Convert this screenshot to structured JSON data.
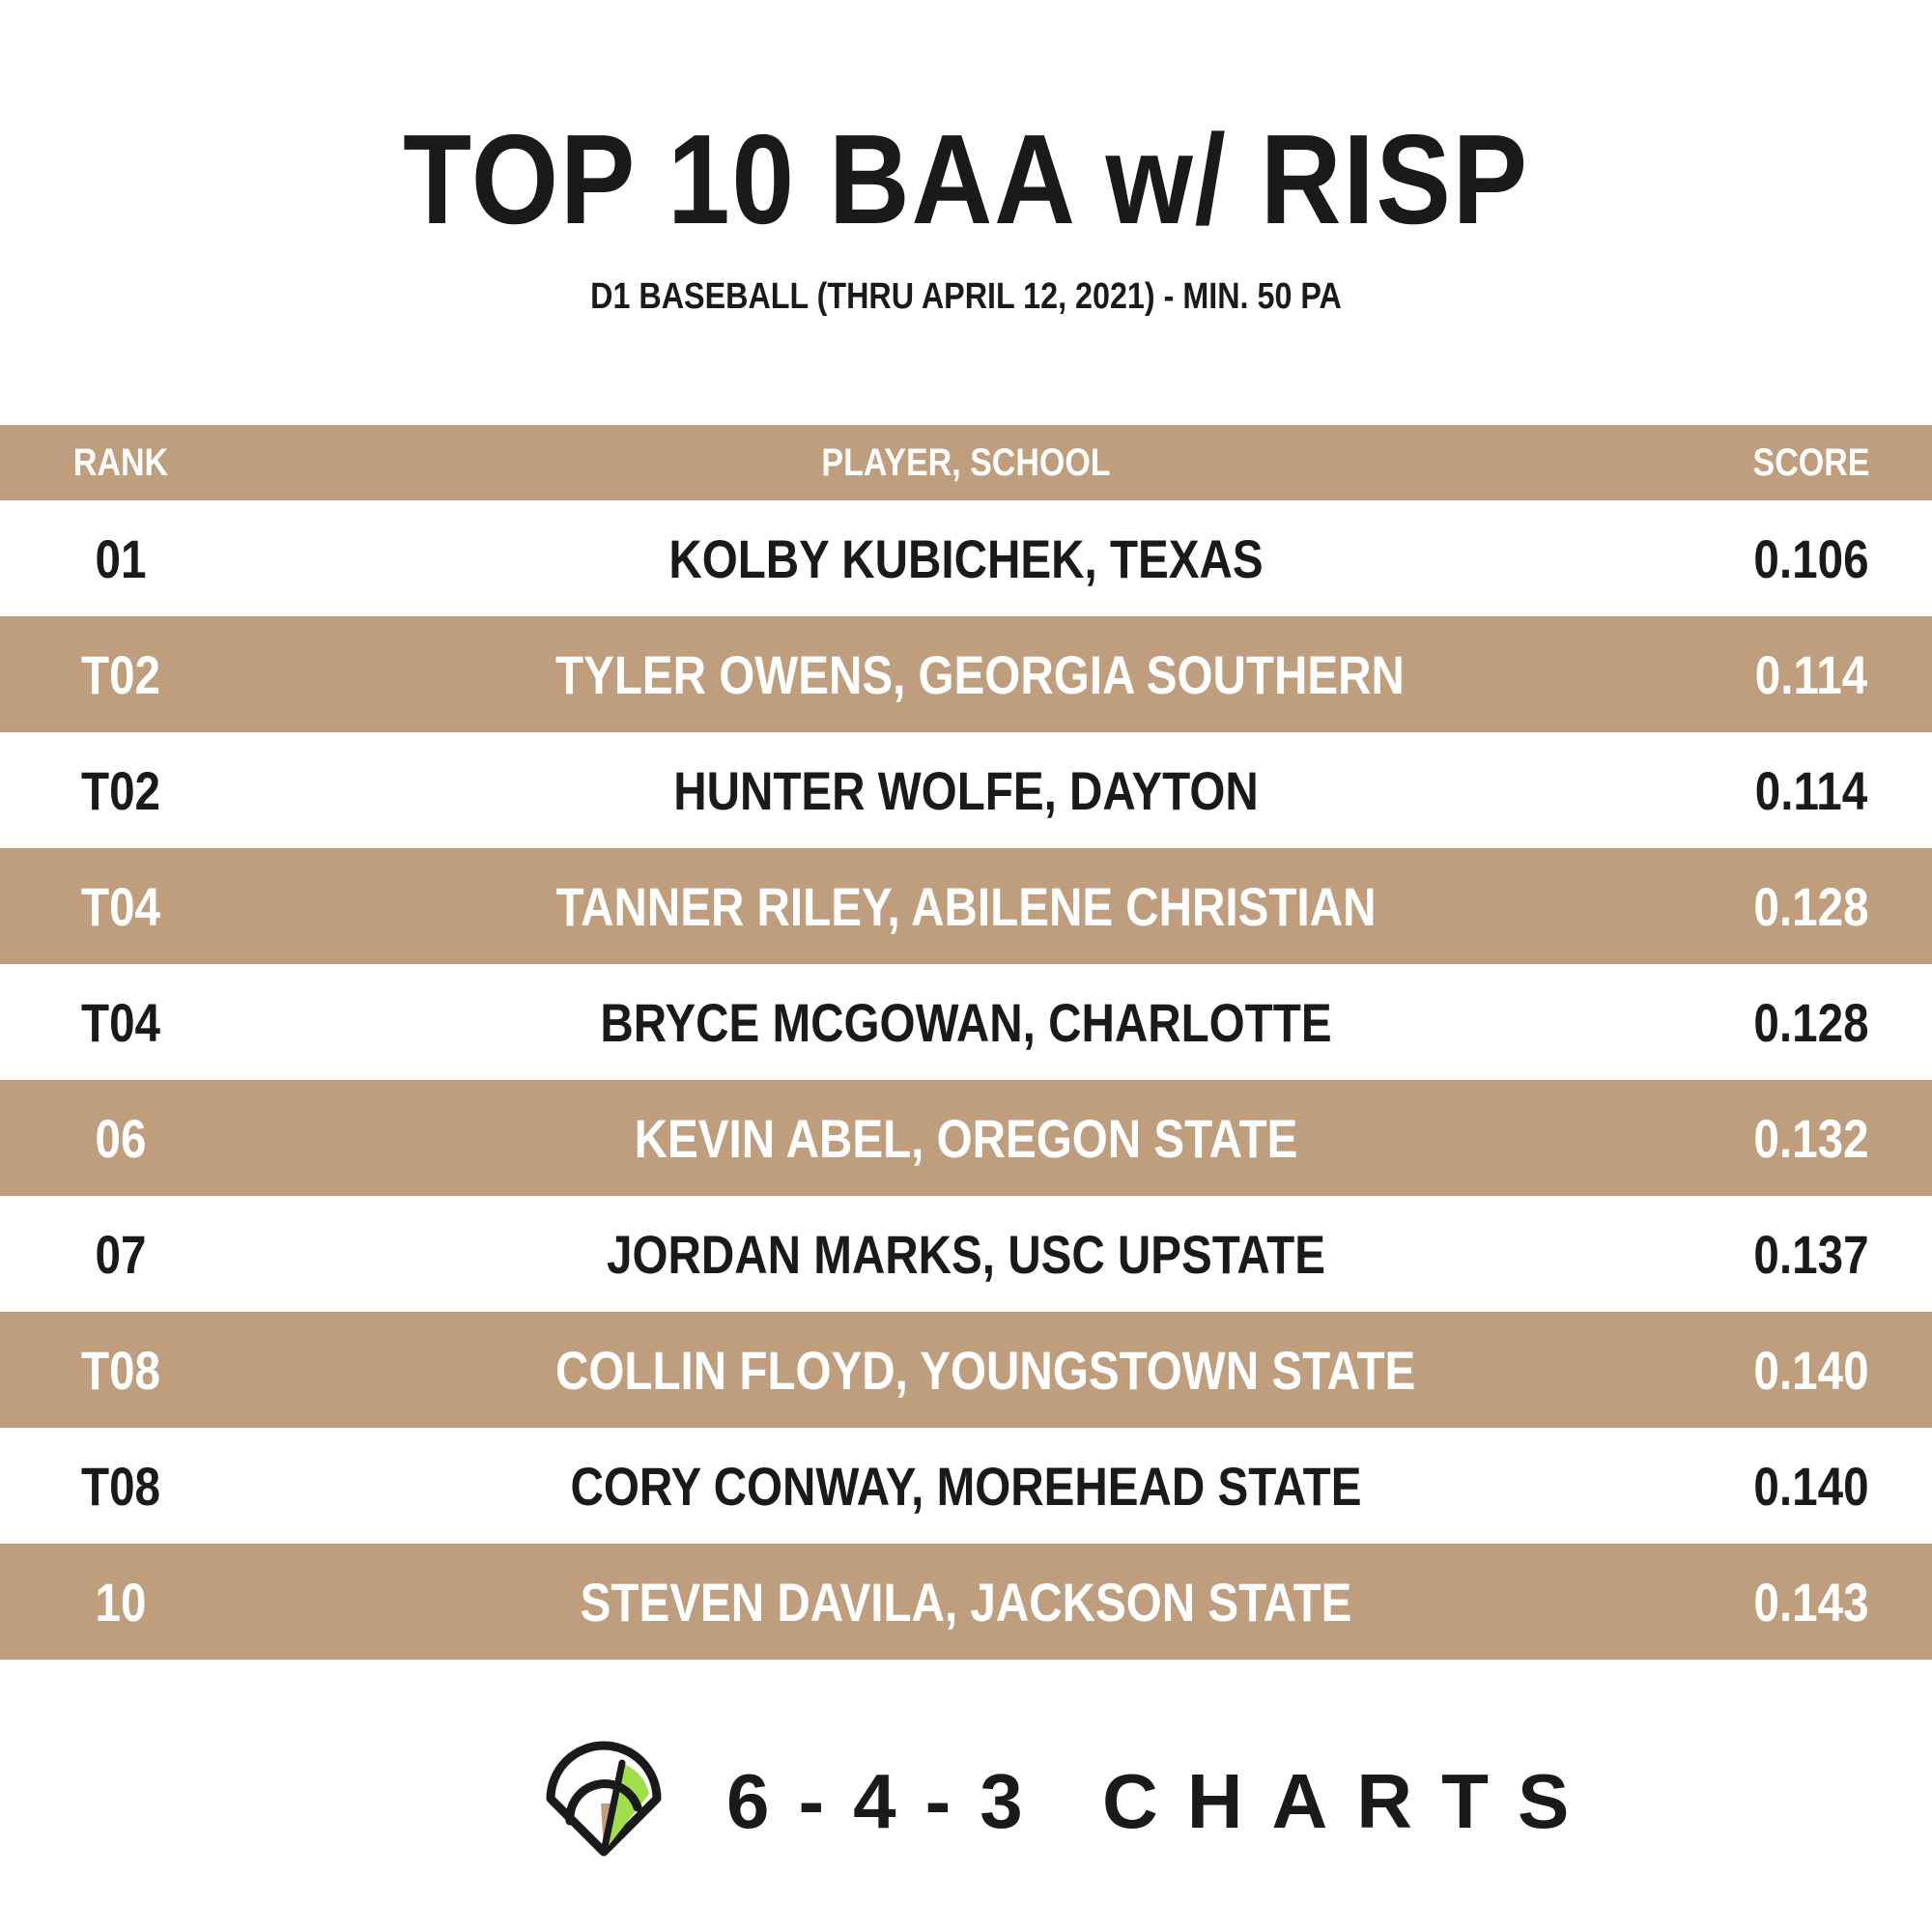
{
  "title": "TOP 10 BAA w/ RISP",
  "subtitle": "D1 BASEBALL (THRU APRIL 12, 2021) - MIN. 50 PA",
  "colors": {
    "band": "#bf9e7d",
    "text_dark": "#1a1a1a",
    "text_light": "#ffffff",
    "logo_green": "#9fe04a",
    "logo_tan": "#bf9e7d"
  },
  "chart_data": {
    "type": "table",
    "title": "TOP 10 BAA w/ RISP",
    "subtitle": "D1 BASEBALL (THRU APRIL 12, 2021) - MIN. 50 PA",
    "columns": [
      "RANK",
      "PLAYER, SCHOOL",
      "SCORE"
    ],
    "rows": [
      {
        "rank": "01",
        "player": "KOLBY KUBICHEK, TEXAS",
        "score": "0.106"
      },
      {
        "rank": "T02",
        "player": "TYLER OWENS, GEORGIA SOUTHERN",
        "score": "0.114"
      },
      {
        "rank": "T02",
        "player": "HUNTER WOLFE, DAYTON",
        "score": "0.114"
      },
      {
        "rank": "T04",
        "player": "TANNER RILEY, ABILENE CHRISTIAN",
        "score": "0.128"
      },
      {
        "rank": "T04",
        "player": "BRYCE MCGOWAN, CHARLOTTE",
        "score": "0.128"
      },
      {
        "rank": "06",
        "player": "KEVIN ABEL, OREGON STATE",
        "score": "0.132"
      },
      {
        "rank": "07",
        "player": "JORDAN MARKS, USC UPSTATE",
        "score": "0.137"
      },
      {
        "rank": "T08",
        "player": "COLLIN FLOYD, YOUNGSTOWN STATE",
        "score": "0.140"
      },
      {
        "rank": "T08",
        "player": "CORY CONWAY, MOREHEAD STATE",
        "score": "0.140"
      },
      {
        "rank": "10",
        "player": "STEVEN DAVILA, JACKSON STATE",
        "score": "0.143"
      }
    ]
  },
  "logo": {
    "icon": "baseball-field-icon",
    "text": "6-4-3 CHARTS"
  }
}
